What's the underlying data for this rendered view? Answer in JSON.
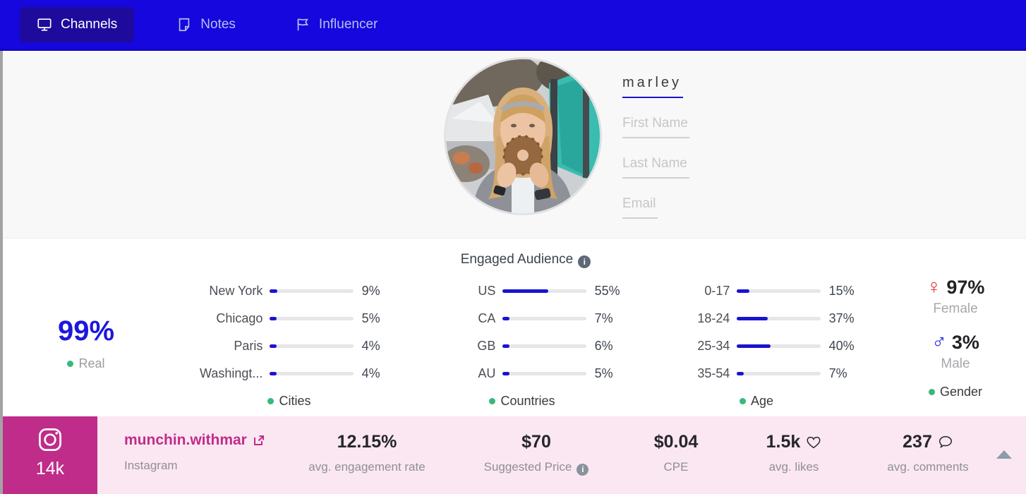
{
  "header": {
    "tabs": [
      {
        "label": "Channels",
        "icon": "monitor-icon",
        "active": true
      },
      {
        "label": "Notes",
        "icon": "note-icon",
        "active": false
      },
      {
        "label": "Influencer",
        "icon": "flag-icon",
        "active": false
      }
    ]
  },
  "profile": {
    "username_value": "marley",
    "first_name_placeholder": "First Name",
    "last_name_placeholder": "Last Name",
    "email_placeholder": "Email"
  },
  "audience": {
    "title": "Engaged Audience",
    "real_value": "99%",
    "real_label": "Real"
  },
  "icons": {
    "female": "♀",
    "male": "♂"
  },
  "chart_data": [
    {
      "type": "bar",
      "legend": "Cities",
      "categories": [
        "New York",
        "Chicago",
        "Paris",
        "Washingt..."
      ],
      "values": [
        9,
        5,
        4,
        4
      ],
      "value_labels": [
        "9%",
        "5%",
        "4%",
        "4%"
      ]
    },
    {
      "type": "bar",
      "legend": "Countries",
      "categories": [
        "US",
        "CA",
        "GB",
        "AU"
      ],
      "values": [
        55,
        7,
        6,
        5
      ],
      "value_labels": [
        "55%",
        "7%",
        "6%",
        "5%"
      ]
    },
    {
      "type": "bar",
      "legend": "Age",
      "categories": [
        "0-17",
        "18-24",
        "25-34",
        "35-54"
      ],
      "values": [
        15,
        37,
        40,
        7
      ],
      "value_labels": [
        "15%",
        "37%",
        "40%",
        "7%"
      ]
    },
    {
      "type": "stat",
      "legend": "Gender",
      "items": [
        {
          "symbol": "female",
          "value": "97%",
          "label": "Female"
        },
        {
          "symbol": "male",
          "value": "3%",
          "label": "Male"
        }
      ]
    }
  ],
  "footer": {
    "followers": "14k",
    "handle": "munchin.withmar",
    "network": "Instagram",
    "stats": [
      {
        "value": "12.15%",
        "label": "avg. engagement rate"
      },
      {
        "value": "$70",
        "label": "Suggested Price",
        "info": true
      },
      {
        "value": "$0.04",
        "label": "CPE"
      },
      {
        "value": "1.5k",
        "label": "avg. likes",
        "icon": "heart-icon"
      },
      {
        "value": "237",
        "label": "avg. comments",
        "icon": "comment-icon"
      }
    ]
  },
  "colors": {
    "header_blue": "#1507dd",
    "active_tab_blue": "#1e0b9d",
    "accent_blue": "#1a13cf",
    "real_blue": "#1d18da",
    "magenta": "#c02c8a",
    "footer_pink": "#fbe7f2",
    "legend_green": "#36b97c",
    "female_red": "#e03131",
    "male_blue": "#2023dd"
  }
}
